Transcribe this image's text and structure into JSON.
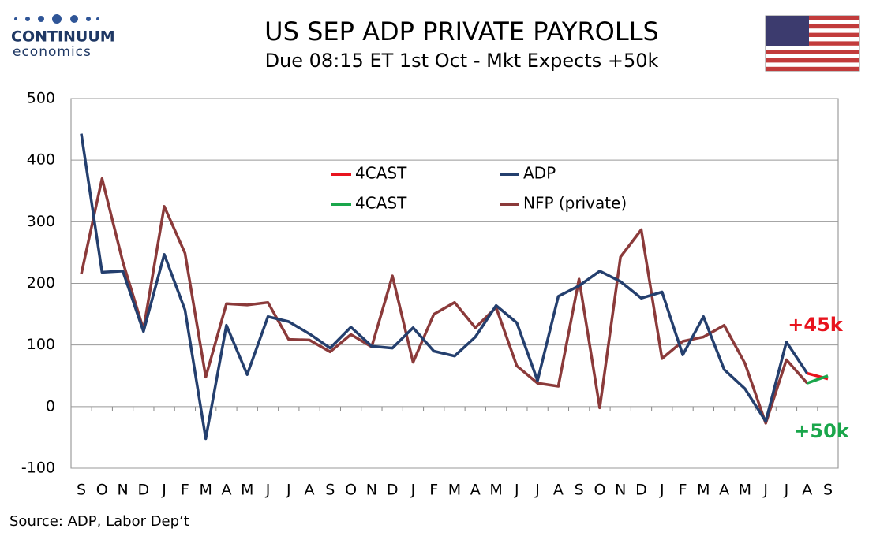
{
  "logo": {
    "name": "CONTINUUM",
    "tagline": "economics"
  },
  "chart_data": {
    "type": "line",
    "title": "US SEP ADP PRIVATE PAYROLLS",
    "subtitle": "Due 08:15 ET 1st Oct - Mkt Expects +50k",
    "source": "Source: ADP, Labor Dep’t",
    "categories": [
      "S",
      "O",
      "N",
      "D",
      "J",
      "F",
      "M",
      "A",
      "M",
      "J",
      "J",
      "A",
      "S",
      "O",
      "N",
      "D",
      "J",
      "F",
      "M",
      "A",
      "M",
      "J",
      "J",
      "A",
      "S",
      "O",
      "N",
      "D",
      "J",
      "F",
      "M",
      "A",
      "M",
      "J",
      "J",
      "A",
      "S"
    ],
    "series": [
      {
        "name": "4CAST",
        "color": "#e8141e",
        "values": [
          null,
          null,
          null,
          null,
          null,
          null,
          null,
          null,
          null,
          null,
          null,
          null,
          null,
          null,
          null,
          null,
          null,
          null,
          null,
          null,
          null,
          null,
          null,
          null,
          null,
          null,
          null,
          null,
          null,
          null,
          null,
          null,
          null,
          null,
          null,
          54,
          45
        ]
      },
      {
        "name": "ADP",
        "color": "#243f6e",
        "values": [
          443,
          218,
          220,
          122,
          247,
          157,
          -52,
          132,
          52,
          146,
          138,
          118,
          95,
          129,
          98,
          95,
          128,
          90,
          82,
          113,
          164,
          136,
          42,
          179,
          196,
          220,
          203,
          176,
          186,
          84,
          146,
          60,
          29,
          -24,
          105,
          54,
          null
        ]
      },
      {
        "name": "4CAST",
        "color": "#1aa64b",
        "values": [
          null,
          null,
          null,
          null,
          null,
          null,
          null,
          null,
          null,
          null,
          null,
          null,
          null,
          null,
          null,
          null,
          null,
          null,
          null,
          null,
          null,
          null,
          null,
          null,
          null,
          null,
          null,
          null,
          null,
          null,
          null,
          null,
          null,
          null,
          null,
          38,
          50
        ]
      },
      {
        "name": "NFP (private)",
        "color": "#8b3a3a",
        "values": [
          215,
          370,
          235,
          125,
          325,
          249,
          48,
          167,
          165,
          169,
          109,
          108,
          89,
          117,
          97,
          212,
          72,
          150,
          169,
          128,
          161,
          66,
          38,
          33,
          207,
          -2,
          243,
          287,
          78,
          106,
          113,
          132,
          70,
          -27,
          76,
          38,
          null
        ]
      }
    ],
    "annotations": [
      {
        "text": "+45k",
        "color": "#e8141e"
      },
      {
        "text": "+50k",
        "color": "#1aa64b"
      }
    ],
    "ylim": [
      -100,
      500
    ],
    "yticks": [
      -100,
      0,
      100,
      200,
      300,
      400,
      500
    ],
    "grid": true
  }
}
